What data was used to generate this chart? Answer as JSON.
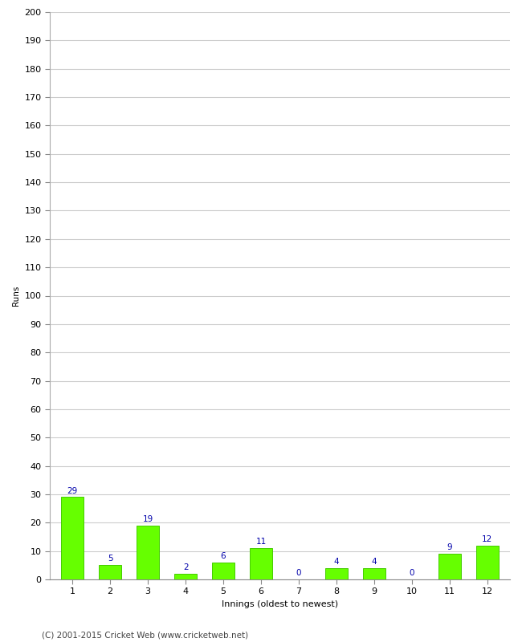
{
  "xlabel": "Innings (oldest to newest)",
  "ylabel": "Runs",
  "categories": [
    1,
    2,
    3,
    4,
    5,
    6,
    7,
    8,
    9,
    10,
    11,
    12
  ],
  "values": [
    29,
    5,
    19,
    2,
    6,
    11,
    0,
    4,
    4,
    0,
    9,
    12
  ],
  "bar_color": "#66ff00",
  "bar_edge_color": "#44cc00",
  "label_color": "#0000aa",
  "ylim": [
    0,
    200
  ],
  "yticks": [
    0,
    10,
    20,
    30,
    40,
    50,
    60,
    70,
    80,
    90,
    100,
    110,
    120,
    130,
    140,
    150,
    160,
    170,
    180,
    190,
    200
  ],
  "background_color": "#ffffff",
  "grid_color": "#cccccc",
  "footer_text": "(C) 2001-2015 Cricket Web (www.cricketweb.net)",
  "label_fontsize": 7.5,
  "axis_fontsize": 8,
  "ylabel_fontsize": 7.5,
  "footer_fontsize": 7.5
}
